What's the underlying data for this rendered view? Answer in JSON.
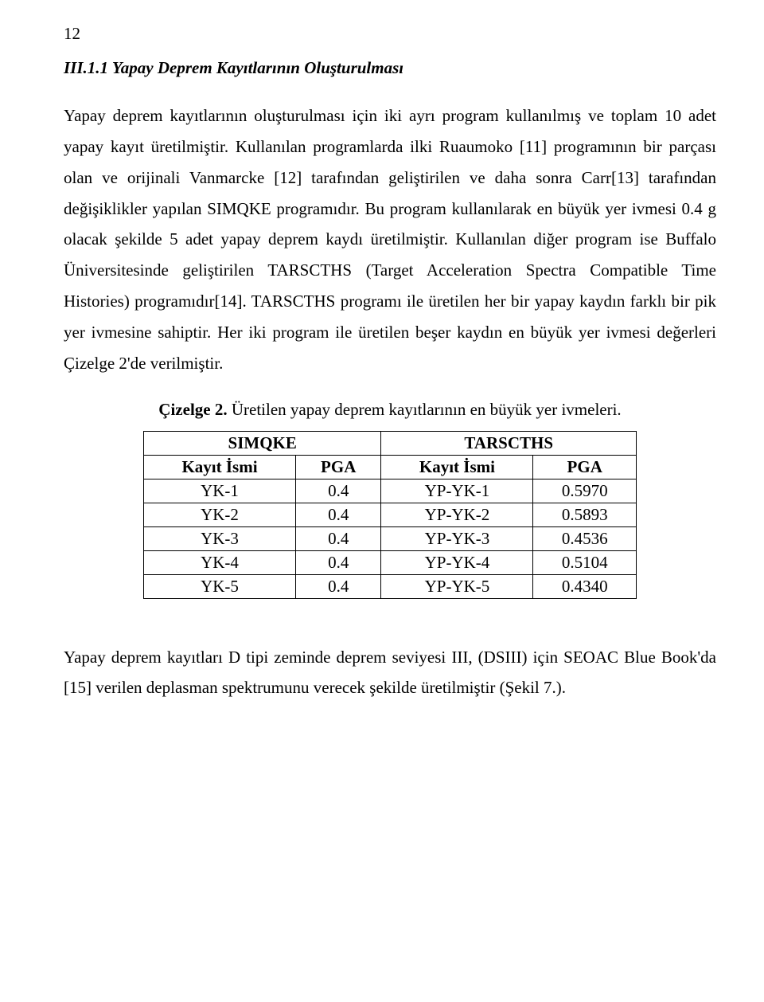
{
  "page_number": "12",
  "subheading": "III.1.1 Yapay Deprem Kayıtlarının Oluşturulması",
  "paragraph1": "Yapay deprem kayıtlarının oluşturulması için iki ayrı program kullanılmış ve toplam 10 adet yapay kayıt üretilmiştir. Kullanılan programlarda ilki Ruaumoko [11] programının bir parçası olan ve orijinali Vanmarcke [12]  tarafından geliştirilen ve daha sonra Carr[13] tarafından değişiklikler yapılan SIMQKE programıdır. Bu program kullanılarak en büyük yer ivmesi 0.4 g olacak şekilde 5 adet yapay deprem kaydı üretilmiştir. Kullanılan diğer program ise Buffalo Üniversitesinde geliştirilen TARSCTHS (Target Acceleration Spectra Compatible Time Histories) programıdır[14]. TARSCTHS programı ile üretilen her bir yapay kaydın farklı bir pik yer ivmesine sahiptir.  Her iki program ile üretilen beşer kaydın en büyük yer ivmesi değerleri Çizelge 2'de verilmiştir.",
  "table_caption_label": "Çizelge 2.",
  "table_caption_text": "  Üretilen yapay deprem kayıtlarının en büyük yer ivmeleri.",
  "table": {
    "group_headers": [
      "SIMQKE",
      "TARSCTHS"
    ],
    "col_headers": [
      "Kayıt İsmi",
      "PGA",
      "Kayıt İsmi",
      "PGA"
    ],
    "rows": [
      [
        "YK-1",
        "0.4",
        "YP-YK-1",
        "0.5970"
      ],
      [
        "YK-2",
        "0.4",
        "YP-YK-2",
        "0.5893"
      ],
      [
        "YK-3",
        "0.4",
        "YP-YK-3",
        "0.4536"
      ],
      [
        "YK-4",
        "0.4",
        "YP-YK-4",
        "0.5104"
      ],
      [
        "YK-5",
        "0.4",
        "YP-YK-5",
        "0.4340"
      ]
    ]
  },
  "paragraph2": "Yapay deprem kayıtları D tipi zeminde deprem seviyesi III, (DSIII) için SEOAC Blue Book'da [15] verilen deplasman spektrumunu verecek şekilde üretilmiştir (Şekil 7.)."
}
